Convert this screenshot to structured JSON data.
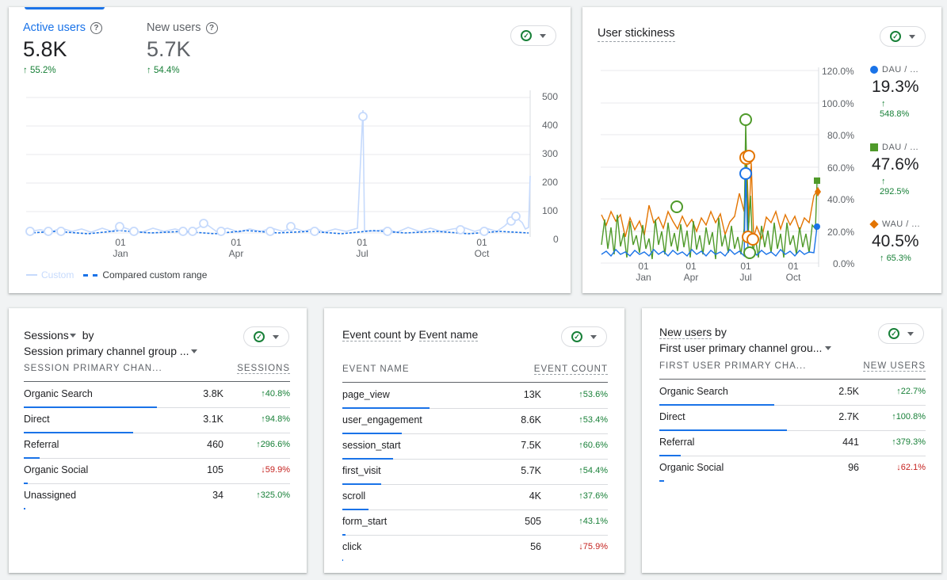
{
  "colors": {
    "blue": "#1a73e8",
    "green": "#188038",
    "orange": "#e37400",
    "light_blue": "#c6dafc",
    "line_green": "#4f9a2a"
  },
  "card1": {
    "metric1": {
      "label": "Active users",
      "value": "5.8K",
      "change": "55.2%"
    },
    "metric2": {
      "label": "New users",
      "value": "5.7K",
      "change": "54.4%"
    },
    "help_icon": "help-circle-icon",
    "y_ticks": [
      "500",
      "400",
      "300",
      "200",
      "100",
      "0"
    ],
    "x_ticks": [
      {
        "day": "01",
        "month": "Jan"
      },
      {
        "day": "01",
        "month": "Apr"
      },
      {
        "day": "01",
        "month": "Jul"
      },
      {
        "day": "01",
        "month": "Oct"
      }
    ],
    "legend": {
      "custom": "Custom",
      "compared": "Compared custom range"
    }
  },
  "card2": {
    "title": "User stickiness",
    "y_ticks": [
      "120.0%",
      "100.0%",
      "80.0%",
      "60.0%",
      "40.0%",
      "20.0%",
      "0.0%"
    ],
    "x_ticks": [
      {
        "day": "01",
        "month": "Jan"
      },
      {
        "day": "01",
        "month": "Apr"
      },
      {
        "day": "01",
        "month": "Jul"
      },
      {
        "day": "01",
        "month": "Oct"
      }
    ],
    "series": [
      {
        "label": "DAU / ...",
        "value": "19.3%",
        "change": "548.8%",
        "color": "#1a73e8",
        "marker": "circle"
      },
      {
        "label": "DAU / ...",
        "value": "47.6%",
        "change": "292.5%",
        "color": "#4f9a2a",
        "marker": "square"
      },
      {
        "label": "WAU / ...",
        "value": "40.5%",
        "change": "65.3%",
        "color": "#e37400",
        "marker": "diamond"
      }
    ]
  },
  "card3": {
    "title_part1": "Sessions",
    "title_by": "by",
    "title_part2": "Session primary channel group ...",
    "col1": "SESSION PRIMARY CHAN...",
    "col2": "SESSIONS",
    "rows": [
      {
        "label": "Organic Search",
        "value": "3.8K",
        "change": "40.8%",
        "dir": "up",
        "bar": 0.6
      },
      {
        "label": "Direct",
        "value": "3.1K",
        "change": "94.8%",
        "dir": "up",
        "bar": 0.49
      },
      {
        "label": "Referral",
        "value": "460",
        "change": "296.6%",
        "dir": "up",
        "bar": 0.07
      },
      {
        "label": "Organic Social",
        "value": "105",
        "change": "59.9%",
        "dir": "down",
        "bar": 0.016
      },
      {
        "label": "Unassigned",
        "value": "34",
        "change": "325.0%",
        "dir": "up",
        "bar": 0.005
      }
    ]
  },
  "card4": {
    "title_part1": "Event count",
    "title_by": "by",
    "title_part2": "Event name",
    "col1": "EVENT NAME",
    "col2": "EVENT COUNT",
    "rows": [
      {
        "label": "page_view",
        "value": "13K",
        "change": "53.6%",
        "dir": "up",
        "bar": 0.33
      },
      {
        "label": "user_engagement",
        "value": "8.6K",
        "change": "53.4%",
        "dir": "up",
        "bar": 0.22
      },
      {
        "label": "session_start",
        "value": "7.5K",
        "change": "60.6%",
        "dir": "up",
        "bar": 0.19
      },
      {
        "label": "first_visit",
        "value": "5.7K",
        "change": "54.4%",
        "dir": "up",
        "bar": 0.145
      },
      {
        "label": "scroll",
        "value": "4K",
        "change": "37.6%",
        "dir": "up",
        "bar": 0.1
      },
      {
        "label": "form_start",
        "value": "505",
        "change": "43.1%",
        "dir": "up",
        "bar": 0.013
      },
      {
        "label": "click",
        "value": "56",
        "change": "75.9%",
        "dir": "down",
        "bar": 0.002
      }
    ]
  },
  "card5": {
    "title_part1": "New users",
    "title_by": "by",
    "title_part2": "First user primary channel grou...",
    "col1": "FIRST USER PRIMARY CHA...",
    "col2": "NEW USERS",
    "rows": [
      {
        "label": "Organic Search",
        "value": "2.5K",
        "change": "22.7%",
        "dir": "up",
        "bar": 0.43
      },
      {
        "label": "Direct",
        "value": "2.7K",
        "change": "100.8%",
        "dir": "up",
        "bar": 0.48
      },
      {
        "label": "Referral",
        "value": "441",
        "change": "379.3%",
        "dir": "up",
        "bar": 0.08
      },
      {
        "label": "Organic Social",
        "value": "96",
        "change": "62.1%",
        "dir": "down",
        "bar": 0.017
      }
    ]
  }
}
